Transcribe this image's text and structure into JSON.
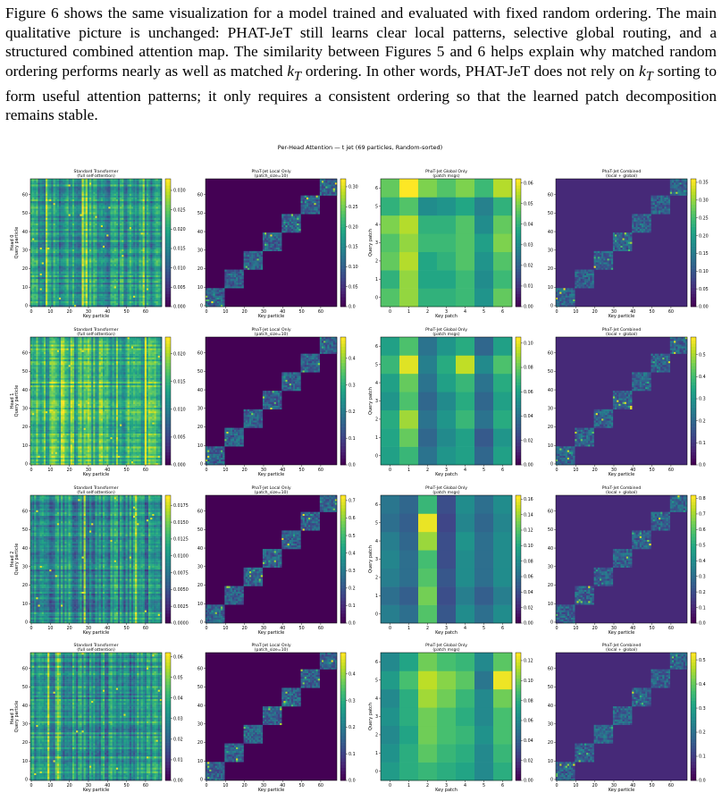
{
  "paragraph": {
    "part1": "Figure 6 shows the same visualization for a model trained and evaluated with fixed random ordering. The main qualitative picture is unchanged: PHAT-JeT still learns clear local patterns, selective global routing, and a structured combined attention map. The similarity between Figures 5 and 6 helps explain why matched random ordering performs nearly as well as matched ",
    "kt1": "k",
    "kt1_sub": "T",
    "part2": " ordering. In other words, PHAT-JeT does not rely on ",
    "kt2": "k",
    "kt2_sub": "T",
    "part3": " sorting to form useful attention patterns; it only requires a consistent ordering so that the learned patch decomposition remains stable."
  },
  "figure": {
    "suptitle": "Per-Head Attention — t jet (69 particles, Random-sorted)",
    "colors": {
      "cmap": "viridis"
    },
    "column_titles": [
      [
        "Standard Transformer",
        "(full self-attention)"
      ],
      [
        "PhaT-Jet Local Only",
        "(patch_size=10)"
      ],
      [
        "PhaT-Jet Global Only",
        "(patch msgs)"
      ],
      [
        "PhaT-Jet Combined",
        "(local + global)"
      ]
    ],
    "row_labels": [
      [
        "Head 0",
        "Query particle"
      ],
      [
        "Head 1",
        "Query particle"
      ],
      [
        "Head 2",
        "Query particle"
      ],
      [
        "Head 3",
        "Query particle"
      ]
    ],
    "global_ylabel": "Query patch",
    "xlabels": [
      "Key particle",
      "Key particle",
      "Key patch",
      "Key particle"
    ],
    "particle_ticks": [
      "0",
      "10",
      "20",
      "30",
      "40",
      "50",
      "60"
    ],
    "patch_ticks": [
      "0",
      "1",
      "2",
      "3",
      "4",
      "5",
      "6"
    ],
    "colorbar_ticks": [
      [
        [
          "0.000",
          "0.005",
          "0.010",
          "0.015",
          "0.020",
          "0.025",
          "0.030"
        ],
        [
          "0.0",
          "0.05",
          "0.10",
          "0.15",
          "0.20",
          "0.25",
          "0.30"
        ],
        [
          "0.00",
          "0.01",
          "0.02",
          "0.03",
          "0.04",
          "0.05",
          "0.06"
        ],
        [
          "0.00",
          "0.05",
          "0.10",
          "0.15",
          "0.20",
          "0.25",
          "0.30",
          "0.35"
        ]
      ],
      [
        [
          "0.000",
          "0.005",
          "0.010",
          "0.015",
          "0.020"
        ],
        [
          "0.0",
          "0.1",
          "0.2",
          "0.3",
          "0.4"
        ],
        [
          "0.00",
          "0.02",
          "0.04",
          "0.06",
          "0.08",
          "0.10"
        ],
        [
          "0.0",
          "0.1",
          "0.2",
          "0.3",
          "0.4",
          "0.5"
        ]
      ],
      [
        [
          "0.0000",
          "0.0025",
          "0.0050",
          "0.0075",
          "0.0100",
          "0.0125",
          "0.0150",
          "0.0175"
        ],
        [
          "0.0",
          "0.1",
          "0.2",
          "0.3",
          "0.4",
          "0.5",
          "0.6",
          "0.7"
        ],
        [
          "0.00",
          "0.02",
          "0.04",
          "0.06",
          "0.08",
          "0.10",
          "0.12",
          "0.14",
          "0.16"
        ],
        [
          "0.0",
          "0.1",
          "0.2",
          "0.3",
          "0.4",
          "0.5",
          "0.6",
          "0.7",
          "0.8"
        ]
      ],
      [
        [
          "0.00",
          "0.01",
          "0.02",
          "0.03",
          "0.04",
          "0.05",
          "0.06"
        ],
        [
          "0.0",
          "0.1",
          "0.2",
          "0.3",
          "0.4"
        ],
        [
          "0.00",
          "0.02",
          "0.04",
          "0.06",
          "0.08",
          "0.10",
          "0.12"
        ],
        [
          "0.0",
          "0.1",
          "0.2",
          "0.3",
          "0.4",
          "0.5"
        ]
      ]
    ]
  },
  "chart_data": [
    {
      "type": "heatmap",
      "title": "Per-Head Attention — t jet (69 particles, Random-sorted)",
      "rows": [
        "Head 0",
        "Head 1",
        "Head 2",
        "Head 3"
      ],
      "columns": [
        "Standard Transformer (full self-attention)",
        "PhaT-Jet Local Only (patch_size=10)",
        "PhaT-Jet Global Only (patch msgs)",
        "PhaT-Jet Combined (local + global)"
      ],
      "particle_count": 69,
      "patch_count": 7,
      "patch_size": 10,
      "colorbar_max": [
        [
          0.033,
          0.32,
          0.062,
          0.36
        ],
        [
          0.023,
          0.48,
          0.105,
          0.58
        ],
        [
          0.019,
          0.73,
          0.165,
          0.82
        ],
        [
          0.062,
          0.48,
          0.128,
          0.53
        ]
      ],
      "global_patch_values": [
        [
          [
            0.045,
            0.052,
            0.04,
            0.04,
            0.042,
            0.032,
            0.047
          ],
          [
            0.04,
            0.052,
            0.037,
            0.037,
            0.042,
            0.03,
            0.042
          ],
          [
            0.047,
            0.055,
            0.037,
            0.04,
            0.045,
            0.032,
            0.045
          ],
          [
            0.045,
            0.052,
            0.042,
            0.042,
            0.045,
            0.035,
            0.05
          ],
          [
            0.05,
            0.055,
            0.04,
            0.04,
            0.045,
            0.03,
            0.047
          ],
          [
            0.04,
            0.045,
            0.03,
            0.032,
            0.037,
            0.027,
            0.04
          ],
          [
            0.047,
            0.062,
            0.05,
            0.045,
            0.05,
            0.042,
            0.055
          ]
        ],
        [
          [
            0.06,
            0.07,
            0.04,
            0.055,
            0.06,
            0.035,
            0.06
          ],
          [
            0.062,
            0.08,
            0.035,
            0.05,
            0.06,
            0.03,
            0.055
          ],
          [
            0.065,
            0.09,
            0.04,
            0.055,
            0.07,
            0.04,
            0.065
          ],
          [
            0.055,
            0.075,
            0.035,
            0.05,
            0.065,
            0.035,
            0.06
          ],
          [
            0.06,
            0.08,
            0.04,
            0.06,
            0.07,
            0.04,
            0.065
          ],
          [
            0.07,
            0.1,
            0.045,
            0.065,
            0.095,
            0.05,
            0.075
          ],
          [
            0.06,
            0.075,
            0.04,
            0.055,
            0.065,
            0.035,
            0.06
          ]
        ],
        [
          [
            0.07,
            0.06,
            0.12,
            0.045,
            0.08,
            0.06,
            0.08
          ],
          [
            0.06,
            0.05,
            0.13,
            0.04,
            0.07,
            0.05,
            0.07
          ],
          [
            0.07,
            0.06,
            0.12,
            0.045,
            0.08,
            0.06,
            0.08
          ],
          [
            0.075,
            0.06,
            0.115,
            0.04,
            0.08,
            0.06,
            0.08
          ],
          [
            0.07,
            0.055,
            0.14,
            0.04,
            0.085,
            0.06,
            0.08
          ],
          [
            0.06,
            0.05,
            0.16,
            0.035,
            0.075,
            0.055,
            0.075
          ],
          [
            0.065,
            0.055,
            0.11,
            0.04,
            0.08,
            0.06,
            0.08
          ]
        ],
        [
          [
            0.07,
            0.08,
            0.085,
            0.08,
            0.075,
            0.06,
            0.08
          ],
          [
            0.065,
            0.08,
            0.095,
            0.085,
            0.08,
            0.06,
            0.085
          ],
          [
            0.06,
            0.075,
            0.1,
            0.09,
            0.085,
            0.065,
            0.09
          ],
          [
            0.065,
            0.08,
            0.1,
            0.09,
            0.08,
            0.06,
            0.09
          ],
          [
            0.06,
            0.08,
            0.11,
            0.1,
            0.085,
            0.06,
            0.1
          ],
          [
            0.07,
            0.09,
            0.115,
            0.105,
            0.095,
            0.05,
            0.125
          ],
          [
            0.06,
            0.075,
            0.1,
            0.09,
            0.085,
            0.06,
            0.095
          ]
        ]
      ]
    }
  ]
}
